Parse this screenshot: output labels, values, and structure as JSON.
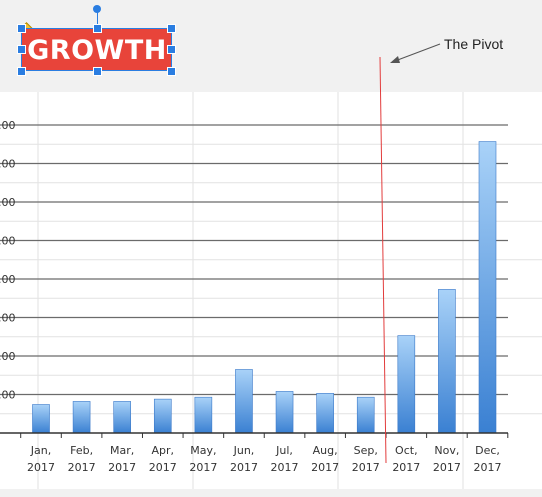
{
  "slide": {
    "title_badge": "GROWTH",
    "annotation": "The Pivot",
    "badge_color": "#e8443a",
    "selection_color": "#2a7de1",
    "pivot_line_color": "#e23c3c"
  },
  "chart_data": {
    "type": "bar",
    "categories": [
      [
        "Jan,",
        "2017"
      ],
      [
        "Feb,",
        "2017"
      ],
      [
        "Mar,",
        "2017"
      ],
      [
        "Apr,",
        "2017"
      ],
      [
        "May,",
        "2017"
      ],
      [
        "Jun,",
        "2017"
      ],
      [
        "Jul,",
        "2017"
      ],
      [
        "Aug,",
        "2017"
      ],
      [
        "Sep,",
        "2017"
      ],
      [
        "Oct,",
        "2017"
      ],
      [
        "Nov,",
        "2017"
      ],
      [
        "Dec,",
        "2017"
      ]
    ],
    "values": [
      0.74,
      0.82,
      0.82,
      0.88,
      0.93,
      1.65,
      1.08,
      1.03,
      0.93,
      2.53,
      3.73,
      7.57
    ],
    "yticks": [
      ".00",
      ".00",
      ".00",
      ".00",
      ".00",
      ".00",
      ".00",
      ".00"
    ],
    "ylim": [
      0,
      8
    ],
    "grid": true,
    "bar_color_top": "#a9d2f8",
    "bar_color_bottom": "#3a80d2"
  }
}
